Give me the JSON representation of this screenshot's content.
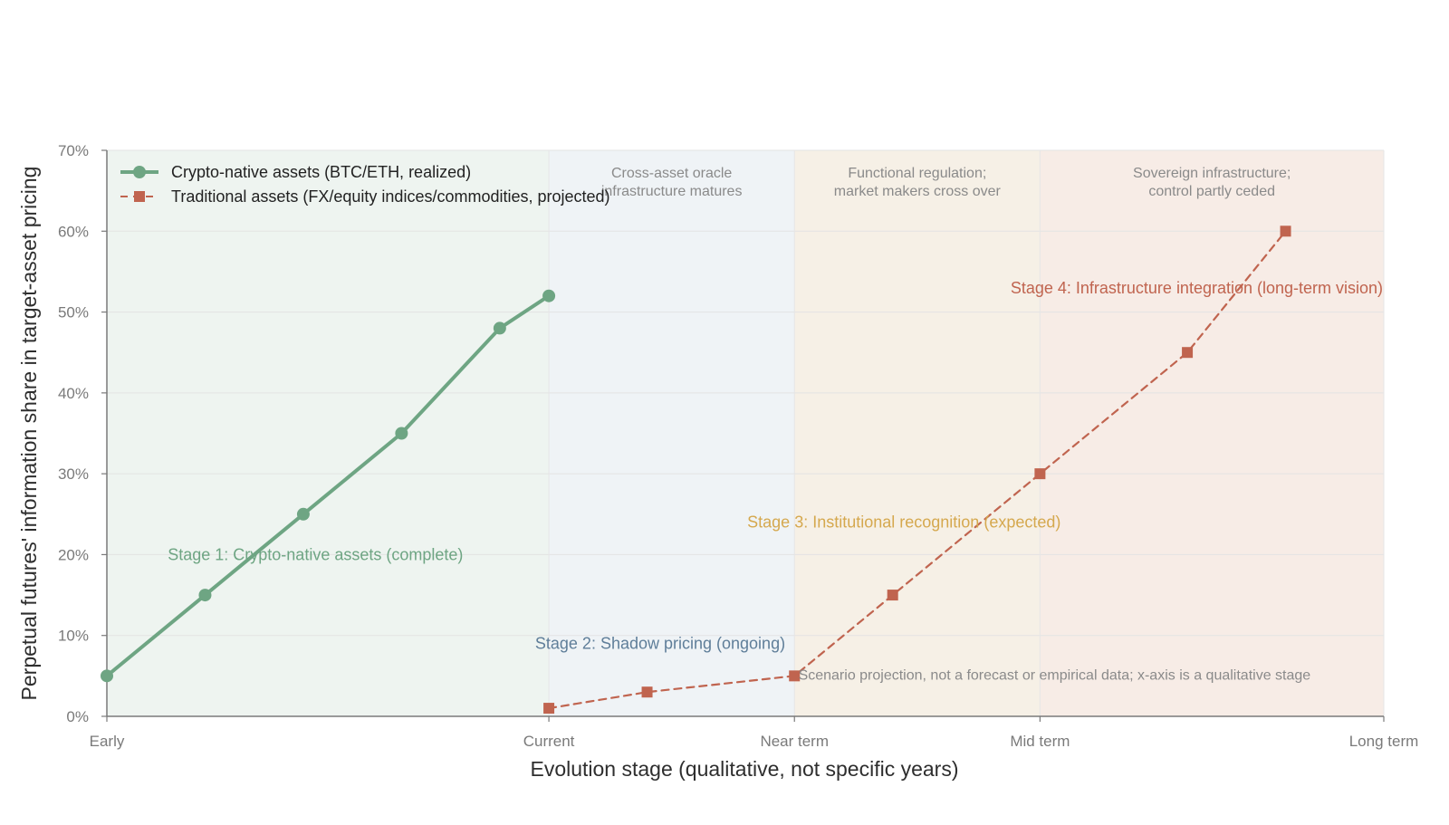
{
  "chart_data": {
    "type": "line",
    "xlabel": "Evolution stage (qualitative, not specific years)",
    "ylabel": "Perpetual futures' information share in target-asset pricing",
    "xlim": [
      0,
      13
    ],
    "ylim": [
      0,
      70
    ],
    "x_ticks": [
      {
        "value": 0,
        "label": "Early"
      },
      {
        "value": 4.5,
        "label": "Current"
      },
      {
        "value": 7,
        "label": "Near term"
      },
      {
        "value": 9.5,
        "label": "Mid term"
      },
      {
        "value": 13,
        "label": "Long term"
      }
    ],
    "y_ticks": [
      {
        "value": 0,
        "label": "0%"
      },
      {
        "value": 10,
        "label": "10%"
      },
      {
        "value": 20,
        "label": "20%"
      },
      {
        "value": 30,
        "label": "30%"
      },
      {
        "value": 40,
        "label": "40%"
      },
      {
        "value": 50,
        "label": "50%"
      },
      {
        "value": 60,
        "label": "60%"
      },
      {
        "value": 70,
        "label": "70%"
      }
    ],
    "grid": true,
    "legend_position": "top-left",
    "bands": [
      {
        "from": 0,
        "to": 4.5,
        "color": "#eef4f0",
        "note": []
      },
      {
        "from": 4.5,
        "to": 7,
        "color": "#eff3f6",
        "note": [
          "Cross-asset oracle",
          "infrastructure matures"
        ]
      },
      {
        "from": 7,
        "to": 9.5,
        "color": "#f6f0e6",
        "note": [
          "Functional regulation;",
          "market makers cross over"
        ]
      },
      {
        "from": 9.5,
        "to": 13,
        "color": "#f7ece6",
        "note": [
          "Sovereign infrastructure;",
          "control partly ceded"
        ]
      }
    ],
    "series": [
      {
        "name": "Crypto-native assets (BTC/ETH, realized)",
        "color": "#6ea583",
        "marker": "circle",
        "dashed": false,
        "x": [
          0,
          1,
          2,
          3,
          4,
          4.5
        ],
        "y": [
          5,
          15,
          25,
          35,
          48,
          52
        ]
      },
      {
        "name": "Traditional assets (FX/equity indices/commodities, projected)",
        "color": "#c0644f",
        "marker": "square",
        "dashed": true,
        "x": [
          4.5,
          5.5,
          7,
          8,
          9.5,
          11,
          12
        ],
        "y": [
          1,
          3,
          5,
          15,
          30,
          45,
          60
        ]
      }
    ],
    "annotations": [
      {
        "text": "Stage 1: Crypto-native assets (complete)",
        "x": 0.62,
        "y": 20,
        "color": "#6ea583"
      },
      {
        "text": "Stage 2: Shadow pricing (ongoing)",
        "x": 4.36,
        "y": 9,
        "color": "#5f7e99"
      },
      {
        "text": "Stage 3: Institutional recognition (expected)",
        "x": 6.52,
        "y": 24,
        "color": "#d5a84e"
      },
      {
        "text": "Stage 4: Infrastructure integration (long-term vision)",
        "x": 9.2,
        "y": 53,
        "color": "#c0644f"
      },
      {
        "text": "Scenario projection, not a forecast or empirical data; x-axis is a qualitative stage",
        "x": 7.04,
        "y": 5.2,
        "color": "#8a8a8a"
      }
    ]
  }
}
